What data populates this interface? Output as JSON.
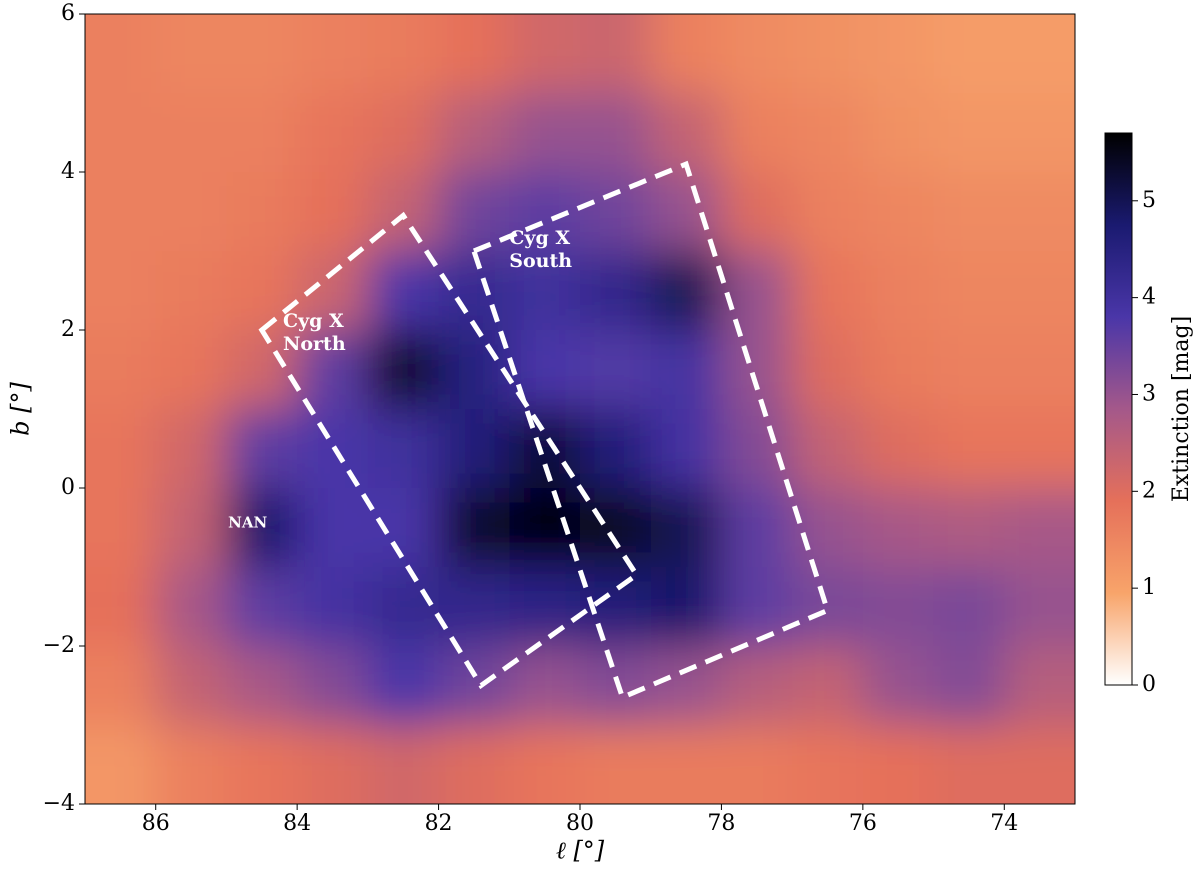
{
  "chart_data": {
    "type": "heatmap",
    "xlabel": "ℓ [°]",
    "ylabel": "b [°]",
    "xlim": [
      87,
      73
    ],
    "ylim": [
      -4,
      6
    ],
    "xticks": [
      86,
      84,
      82,
      80,
      78,
      76,
      74
    ],
    "yticks": [
      {
        "value": -4,
        "label": "−4"
      },
      {
        "value": -2,
        "label": "−2"
      },
      0,
      2,
      4,
      6
    ],
    "x": [
      86.5,
      85.5,
      84.5,
      83.5,
      82.5,
      81.5,
      80.5,
      79.5,
      78.5,
      77.5,
      76.5,
      75.5,
      74.5,
      73.5
    ],
    "y": [
      5.5,
      4.5,
      3.5,
      2.5,
      1.5,
      0.5,
      -0.5,
      -1.5,
      -2.5,
      -3.5
    ],
    "z": [
      [
        1.6,
        1.5,
        1.5,
        1.6,
        1.7,
        1.9,
        2.2,
        2.3,
        1.6,
        1.4,
        1.3,
        1.2,
        1.1,
        1.1
      ],
      [
        1.6,
        1.6,
        1.6,
        1.8,
        2.0,
        2.6,
        3.0,
        3.0,
        2.4,
        1.6,
        1.5,
        1.3,
        1.2,
        1.2
      ],
      [
        1.6,
        1.6,
        1.7,
        1.9,
        2.4,
        3.4,
        3.6,
        3.4,
        3.0,
        2.0,
        1.6,
        1.5,
        1.4,
        1.4
      ],
      [
        1.6,
        1.7,
        1.8,
        2.3,
        3.8,
        4.2,
        4.0,
        4.3,
        5.0,
        3.0,
        1.8,
        1.6,
        1.5,
        1.5
      ],
      [
        1.7,
        1.8,
        2.2,
        3.6,
        5.3,
        4.5,
        3.8,
        3.7,
        3.9,
        3.0,
        2.0,
        1.7,
        1.6,
        1.6
      ],
      [
        1.8,
        2.2,
        3.6,
        3.8,
        4.0,
        4.6,
        5.2,
        4.6,
        3.9,
        3.2,
        2.4,
        2.0,
        1.8,
        1.8
      ],
      [
        1.8,
        2.4,
        4.8,
        3.8,
        3.8,
        5.3,
        5.6,
        5.4,
        5.0,
        3.6,
        3.0,
        2.8,
        2.7,
        2.8
      ],
      [
        1.9,
        2.8,
        3.6,
        3.9,
        4.2,
        4.3,
        4.4,
        4.6,
        4.8,
        3.6,
        3.3,
        3.2,
        3.3,
        3.0
      ],
      [
        1.6,
        2.4,
        2.8,
        3.2,
        3.8,
        3.4,
        3.0,
        3.2,
        3.0,
        2.6,
        2.4,
        3.0,
        3.2,
        2.6
      ],
      [
        1.2,
        1.6,
        1.8,
        2.0,
        2.2,
        2.0,
        1.8,
        1.7,
        1.7,
        1.7,
        1.8,
        1.9,
        2.0,
        2.0
      ]
    ],
    "colormap": [
      "#ffffff",
      "#f8a46a",
      "#e5705a",
      "#a4588a",
      "#4a36a8",
      "#1a1a70",
      "#000000"
    ],
    "clim": [
      0,
      5.7
    ],
    "colorbar_label": "Extinction [mag]",
    "colorbar_ticks": [
      0,
      1,
      2,
      3,
      4,
      5
    ],
    "regions": [
      {
        "label": [
          "Cyg X",
          "North"
        ],
        "l": [
          84.5,
          82.5,
          79.2,
          81.4
        ],
        "b": [
          2.0,
          3.45,
          -1.1,
          -2.5
        ],
        "label_at": [
          84.2,
          2.0
        ]
      },
      {
        "label": [
          "Cyg X",
          "South"
        ],
        "l": [
          81.5,
          78.5,
          76.5,
          79.4
        ],
        "b": [
          3.0,
          4.1,
          -1.55,
          -2.65
        ],
        "label_at": [
          81.0,
          3.05
        ]
      }
    ],
    "annotations": [
      {
        "text": "NAN",
        "at": [
          84.7,
          -0.45
        ]
      }
    ],
    "region_color": "#ffffff"
  }
}
